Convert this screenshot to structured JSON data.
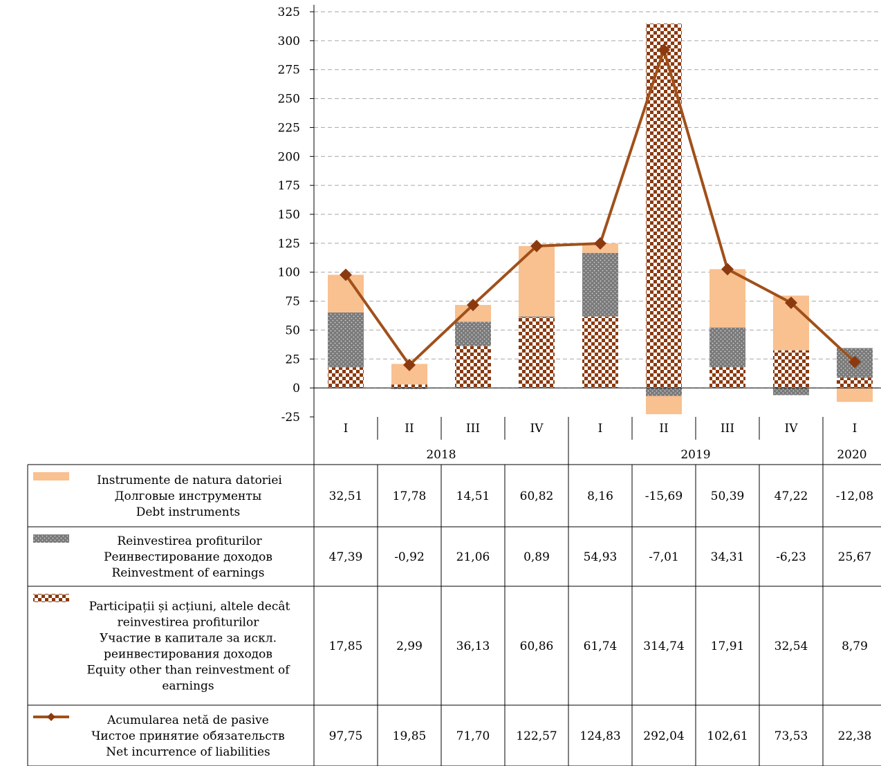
{
  "chart_data": {
    "type": "bar",
    "stacked": true,
    "title": "",
    "ylim": [
      -25,
      325
    ],
    "yticks": [
      325,
      300,
      275,
      250,
      225,
      200,
      175,
      150,
      125,
      100,
      75,
      50,
      25,
      0,
      -25
    ],
    "ytick_labels": [
      "325",
      "300",
      "275",
      "250",
      "225",
      "200",
      "175",
      "150",
      "125",
      "100",
      "75",
      "50",
      "25",
      "0",
      "-25"
    ],
    "grid": true,
    "categories": [
      "I",
      "II",
      "III",
      "IV",
      "I",
      "II",
      "III",
      "IV",
      "I"
    ],
    "years": [
      {
        "label": "2018",
        "span": 4
      },
      {
        "label": "2019",
        "span": 4
      },
      {
        "label": "2020",
        "span": 1
      }
    ],
    "series": [
      {
        "key": "debt",
        "kind": "bar",
        "pattern": "solid",
        "color": "#F9C090",
        "label_lines": [
          "Instrumente de natura datoriei",
          "Долговые инструменты",
          "Debt instruments"
        ],
        "values": [
          32.51,
          17.78,
          14.51,
          60.82,
          8.16,
          -15.69,
          50.39,
          47.22,
          -12.08
        ],
        "value_labels": [
          "32,51",
          "17,78",
          "14,51",
          "60,82",
          "8,16",
          "-15,69",
          "50,39",
          "47,22",
          "-12,08"
        ]
      },
      {
        "key": "reinvest",
        "kind": "bar",
        "pattern": "dots",
        "color": "#808080",
        "label_lines": [
          "Reinvestirea profiturilor",
          "Реинвестирование доходов",
          "Reinvestment of earnings"
        ],
        "values": [
          47.39,
          -0.92,
          21.06,
          0.89,
          54.93,
          -7.01,
          34.31,
          -6.23,
          25.67
        ],
        "value_labels": [
          "47,39",
          "-0,92",
          "21,06",
          "0,89",
          "54,93",
          "-7,01",
          "34,31",
          "-6,23",
          "25,67"
        ]
      },
      {
        "key": "equity",
        "kind": "bar",
        "pattern": "checker",
        "color": "#8B3A0F",
        "label_lines": [
          "Participații și acțiuni, altele decât",
          "reinvestirea profiturilor",
          "Участие в капитале за искл.",
          "реинвестирования доходов",
          "Equity other than reinvestment of",
          "earnings"
        ],
        "values": [
          17.85,
          2.99,
          36.13,
          60.86,
          61.74,
          314.74,
          17.91,
          32.54,
          8.79
        ],
        "value_labels": [
          "17,85",
          "2,99",
          "36,13",
          "60,86",
          "61,74",
          "314,74",
          "17,91",
          "32,54",
          "8,79"
        ]
      },
      {
        "key": "net",
        "kind": "line",
        "marker": "diamond",
        "color": "#A0501A",
        "label_lines": [
          "Acumularea netă de pasive",
          "Чистое принятие обязательств",
          "Net incurrence of liabilities"
        ],
        "values": [
          97.75,
          19.85,
          71.7,
          122.57,
          124.83,
          292.04,
          102.61,
          73.53,
          22.38
        ],
        "value_labels": [
          "97,75",
          "19,85",
          "71,70",
          "122,57",
          "124,83",
          "292,04",
          "102,61",
          "73,53",
          "22,38"
        ]
      }
    ]
  }
}
